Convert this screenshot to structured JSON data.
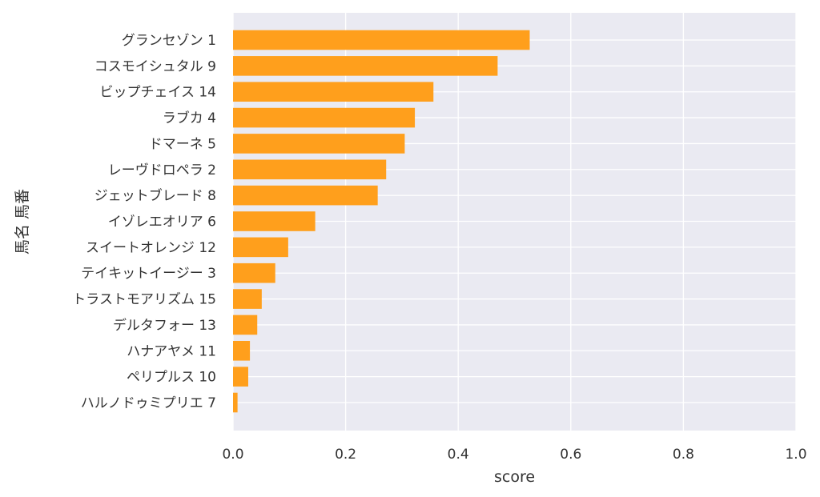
{
  "chart_data": {
    "type": "bar",
    "orientation": "horizontal",
    "xlabel": "score",
    "ylabel": "馬名 馬番",
    "xlim": [
      0.0,
      1.0
    ],
    "xticks": [
      "0.0",
      "0.2",
      "0.4",
      "0.6",
      "0.8",
      "1.0"
    ],
    "grid": true,
    "bar_color": "#ff9f1c",
    "background_color": "#eaeaf2",
    "categories": [
      "グランセゾン 1",
      "コスモイシュタル 9",
      "ビップチェイス 14",
      "ラブカ 4",
      "ドマーネ 5",
      "レーヴドロペラ 2",
      "ジェットブレード 8",
      "イゾレエオリア 6",
      "スイートオレンジ 12",
      "テイキットイージー 3",
      "トラストモアリズム 15",
      "デルタフォー 13",
      "ハナアヤメ 11",
      "ペリプルス 10",
      "ハルノドゥミプリエ 7"
    ],
    "values": [
      0.527,
      0.47,
      0.356,
      0.323,
      0.305,
      0.272,
      0.257,
      0.146,
      0.098,
      0.075,
      0.051,
      0.043,
      0.03,
      0.027,
      0.008
    ]
  }
}
